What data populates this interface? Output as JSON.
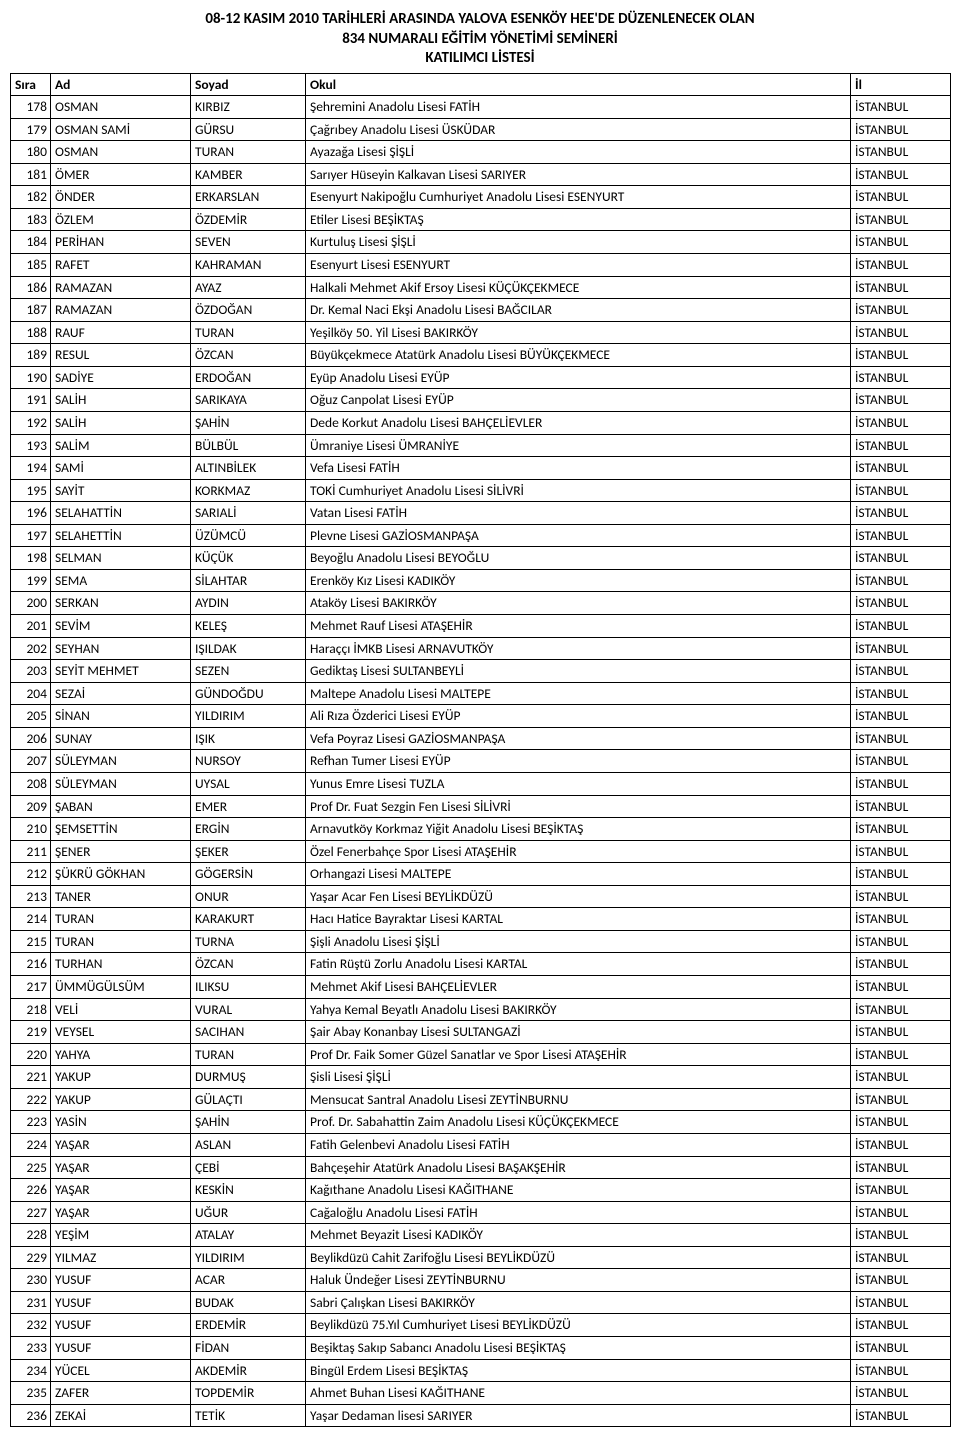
{
  "header": {
    "line1": "08-12 KASIM 2010 TARİHLERİ ARASINDA YALOVA ESENKÖY HEE'DE DÜZENLENECEK OLAN",
    "line2": "834 NUMARALI EĞİTİM YÖNETİMİ SEMİNERİ",
    "line3": "KATILIMCI LİSTESİ"
  },
  "table": {
    "columns": {
      "sira": "Sıra",
      "ad": "Ad",
      "soyad": "Soyad",
      "okul": "Okul",
      "il": "İl"
    },
    "rows": [
      {
        "sira": "178",
        "ad": "OSMAN",
        "soyad": "KIRBIZ",
        "okul": "Şehremini Anadolu Lisesi FATİH",
        "il": "İSTANBUL"
      },
      {
        "sira": "179",
        "ad": "OSMAN SAMİ",
        "soyad": "GÜRSU",
        "okul": "Çağrıbey Anadolu Lisesi ÜSKÜDAR",
        "il": "İSTANBUL"
      },
      {
        "sira": "180",
        "ad": "OSMAN",
        "soyad": "TURAN",
        "okul": "Ayazağa Lisesi ŞİŞLİ",
        "il": "İSTANBUL"
      },
      {
        "sira": "181",
        "ad": "ÖMER",
        "soyad": "KAMBER",
        "okul": "Sarıyer Hüseyin Kalkavan Lisesi SARIYER",
        "il": "İSTANBUL"
      },
      {
        "sira": "182",
        "ad": "ÖNDER",
        "soyad": "ERKARSLAN",
        "okul": "Esenyurt Nakipoğlu Cumhuriyet Anadolu Lisesi ESENYURT",
        "il": "İSTANBUL"
      },
      {
        "sira": "183",
        "ad": "ÖZLEM",
        "soyad": "ÖZDEMİR",
        "okul": "Etiler Lisesi BEŞİKTAŞ",
        "il": "İSTANBUL"
      },
      {
        "sira": "184",
        "ad": "PERİHAN",
        "soyad": "SEVEN",
        "okul": "Kurtuluş Lisesi ŞİŞLİ",
        "il": "İSTANBUL"
      },
      {
        "sira": "185",
        "ad": "RAFET",
        "soyad": "KAHRAMAN",
        "okul": "Esenyurt Lisesi ESENYURT",
        "il": "İSTANBUL"
      },
      {
        "sira": "186",
        "ad": "RAMAZAN",
        "soyad": "AYAZ",
        "okul": "Halkali Mehmet Akif Ersoy Lisesi KÜÇÜKÇEKMECE",
        "il": "İSTANBUL"
      },
      {
        "sira": "187",
        "ad": "RAMAZAN",
        "soyad": "ÖZDOĞAN",
        "okul": "Dr. Kemal Naci Ekşi Anadolu Lisesi BAĞCILAR",
        "il": "İSTANBUL"
      },
      {
        "sira": "188",
        "ad": "RAUF",
        "soyad": "TURAN",
        "okul": "Yeşilköy 50. Yil Lisesi BAKIRKÖY",
        "il": "İSTANBUL"
      },
      {
        "sira": "189",
        "ad": "RESUL",
        "soyad": "ÖZCAN",
        "okul": "Büyükçekmece Atatürk Anadolu Lisesi BÜYÜKÇEKMECE",
        "il": "İSTANBUL"
      },
      {
        "sira": "190",
        "ad": "SADİYE",
        "soyad": "ERDOĞAN",
        "okul": "Eyüp Anadolu Lisesi EYÜP",
        "il": "İSTANBUL"
      },
      {
        "sira": "191",
        "ad": "SALİH",
        "soyad": "SARIKAYA",
        "okul": "Oğuz Canpolat Lisesi EYÜP",
        "il": "İSTANBUL"
      },
      {
        "sira": "192",
        "ad": "SALİH",
        "soyad": "ŞAHİN",
        "okul": "Dede Korkut Anadolu Lisesi BAHÇELİEVLER",
        "il": "İSTANBUL"
      },
      {
        "sira": "193",
        "ad": "SALİM",
        "soyad": "BÜLBÜL",
        "okul": "Ümraniye Lisesi ÜMRANİYE",
        "il": "İSTANBUL"
      },
      {
        "sira": "194",
        "ad": "SAMİ",
        "soyad": "ALTINBİLEK",
        "okul": "Vefa Lisesi FATİH",
        "il": "İSTANBUL"
      },
      {
        "sira": "195",
        "ad": "SAYİT",
        "soyad": "KORKMAZ",
        "okul": "TOKİ Cumhuriyet Anadolu Lisesi SİLİVRİ",
        "il": "İSTANBUL"
      },
      {
        "sira": "196",
        "ad": "SELAHATTİN",
        "soyad": "SARIALİ",
        "okul": "Vatan Lisesi FATİH",
        "il": "İSTANBUL"
      },
      {
        "sira": "197",
        "ad": "SELAHETTİN",
        "soyad": "ÜZÜMCÜ",
        "okul": "Plevne Lisesi GAZİOSMANPAŞA",
        "il": "İSTANBUL"
      },
      {
        "sira": "198",
        "ad": "SELMAN",
        "soyad": "KÜÇÜK",
        "okul": "Beyoğlu Anadolu Lisesi BEYOĞLU",
        "il": "İSTANBUL"
      },
      {
        "sira": "199",
        "ad": "SEMA",
        "soyad": "SİLAHTAR",
        "okul": "Erenköy Kız Lisesi KADIKÖY",
        "il": "İSTANBUL"
      },
      {
        "sira": "200",
        "ad": "SERKAN",
        "soyad": "AYDIN",
        "okul": "Ataköy Lisesi BAKIRKÖY",
        "il": "İSTANBUL"
      },
      {
        "sira": "201",
        "ad": "SEVİM",
        "soyad": "KELEŞ",
        "okul": "Mehmet Rauf Lisesi ATAŞEHİR",
        "il": "İSTANBUL"
      },
      {
        "sira": "202",
        "ad": "SEYHAN",
        "soyad": "IŞILDAK",
        "okul": "Haraççı İMKB Lisesi ARNAVUTKÖY",
        "il": "İSTANBUL"
      },
      {
        "sira": "203",
        "ad": "SEYİT MEHMET",
        "soyad": "SEZEN",
        "okul": "Gediktaş Lisesi SULTANBEYLİ",
        "il": "İSTANBUL"
      },
      {
        "sira": "204",
        "ad": "SEZAİ",
        "soyad": "GÜNDOĞDU",
        "okul": "Maltepe Anadolu Lisesi MALTEPE",
        "il": "İSTANBUL"
      },
      {
        "sira": "205",
        "ad": "SİNAN",
        "soyad": "YILDIRIM",
        "okul": "Ali Rıza Özderici Lisesi EYÜP",
        "il": "İSTANBUL"
      },
      {
        "sira": "206",
        "ad": "SUNAY",
        "soyad": "IŞIK",
        "okul": "Vefa Poyraz Lisesi GAZİOSMANPAŞA",
        "il": "İSTANBUL"
      },
      {
        "sira": "207",
        "ad": "SÜLEYMAN",
        "soyad": "NURSOY",
        "okul": "Refhan Tumer Lisesi EYÜP",
        "il": "İSTANBUL"
      },
      {
        "sira": "208",
        "ad": "SÜLEYMAN",
        "soyad": "UYSAL",
        "okul": "Yunus Emre Lisesi TUZLA",
        "il": "İSTANBUL"
      },
      {
        "sira": "209",
        "ad": "ŞABAN",
        "soyad": "EMER",
        "okul": "Prof Dr. Fuat Sezgin Fen Lisesi SİLİVRİ",
        "il": "İSTANBUL"
      },
      {
        "sira": "210",
        "ad": "ŞEMSETTİN",
        "soyad": "ERGİN",
        "okul": "Arnavutköy Korkmaz Yiğit Anadolu Lisesi BEŞİKTAŞ",
        "il": "İSTANBUL"
      },
      {
        "sira": "211",
        "ad": "ŞENER",
        "soyad": "ŞEKER",
        "okul": "Özel Fenerbahçe Spor Lisesi ATAŞEHİR",
        "il": "İSTANBUL"
      },
      {
        "sira": "212",
        "ad": "ŞÜKRÜ GÖKHAN",
        "soyad": "GÖGERSİN",
        "okul": "Orhangazi Lisesi MALTEPE",
        "il": "İSTANBUL"
      },
      {
        "sira": "213",
        "ad": "TANER",
        "soyad": "ONUR",
        "okul": "Yaşar Acar Fen Lisesi BEYLİKDÜZÜ",
        "il": "İSTANBUL"
      },
      {
        "sira": "214",
        "ad": "TURAN",
        "soyad": "KARAKURT",
        "okul": "Hacı Hatice Bayraktar Lisesi KARTAL",
        "il": "İSTANBUL"
      },
      {
        "sira": "215",
        "ad": "TURAN",
        "soyad": "TURNA",
        "okul": "Şişli Anadolu Lisesi ŞİŞLİ",
        "il": "İSTANBUL"
      },
      {
        "sira": "216",
        "ad": "TURHAN",
        "soyad": "ÖZCAN",
        "okul": "Fatin Rüştü Zorlu Anadolu Lisesi KARTAL",
        "il": "İSTANBUL"
      },
      {
        "sira": "217",
        "ad": "ÜMMÜGÜLSÜM",
        "soyad": "ILIKSU",
        "okul": "Mehmet Akif Lisesi BAHÇELİEVLER",
        "il": "İSTANBUL"
      },
      {
        "sira": "218",
        "ad": "VELİ",
        "soyad": "VURAL",
        "okul": "Yahya Kemal Beyatlı Anadolu Lisesi BAKIRKÖY",
        "il": "İSTANBUL"
      },
      {
        "sira": "219",
        "ad": "VEYSEL",
        "soyad": "SACIHAN",
        "okul": "Şair Abay Konanbay Lisesi SULTANGAZİ",
        "il": "İSTANBUL"
      },
      {
        "sira": "220",
        "ad": "YAHYA",
        "soyad": "TURAN",
        "okul": "Prof Dr. Faik Somer Güzel Sanatlar ve Spor Lisesi ATAŞEHİR",
        "il": "İSTANBUL"
      },
      {
        "sira": "221",
        "ad": "YAKUP",
        "soyad": "DURMUŞ",
        "okul": "Şisli Lisesi ŞİŞLİ",
        "il": "İSTANBUL"
      },
      {
        "sira": "222",
        "ad": "YAKUP",
        "soyad": "GÜLAÇTI",
        "okul": "Mensucat Santral Anadolu Lisesi ZEYTİNBURNU",
        "il": "İSTANBUL"
      },
      {
        "sira": "223",
        "ad": "YASİN",
        "soyad": "ŞAHİN",
        "okul": "Prof. Dr. Sabahattin Zaim Anadolu Lisesi KÜÇÜKÇEKMECE",
        "il": "İSTANBUL"
      },
      {
        "sira": "224",
        "ad": "YAŞAR",
        "soyad": "ASLAN",
        "okul": "Fatih Gelenbevi Anadolu Lisesi FATİH",
        "il": "İSTANBUL"
      },
      {
        "sira": "225",
        "ad": "YAŞAR",
        "soyad": "ÇEBİ",
        "okul": "Bahçeşehir Atatürk Anadolu Lisesi BAŞAKŞEHİR",
        "il": "İSTANBUL"
      },
      {
        "sira": "226",
        "ad": "YAŞAR",
        "soyad": "KESKİN",
        "okul": "Kağıthane Anadolu Lisesi KAĞITHANE",
        "il": "İSTANBUL"
      },
      {
        "sira": "227",
        "ad": "YAŞAR",
        "soyad": "UĞUR",
        "okul": "Cağaloğlu Anadolu Lisesi FATİH",
        "il": "İSTANBUL"
      },
      {
        "sira": "228",
        "ad": "YEŞİM",
        "soyad": "ATALAY",
        "okul": "Mehmet Beyazit Lisesi KADIKÖY",
        "il": "İSTANBUL"
      },
      {
        "sira": "229",
        "ad": "YILMAZ",
        "soyad": "YILDIRIM",
        "okul": "Beylikdüzü Cahit Zarifoğlu Lisesi BEYLİKDÜZÜ",
        "il": "İSTANBUL"
      },
      {
        "sira": "230",
        "ad": "YUSUF",
        "soyad": "ACAR",
        "okul": "Haluk Ündeğer Lisesi ZEYTİNBURNU",
        "il": "İSTANBUL"
      },
      {
        "sira": "231",
        "ad": "YUSUF",
        "soyad": "BUDAK",
        "okul": "Sabri Çalışkan Lisesi BAKIRKÖY",
        "il": "İSTANBUL"
      },
      {
        "sira": "232",
        "ad": "YUSUF",
        "soyad": "ERDEMİR",
        "okul": "Beylikdüzü 75.Yıl Cumhuriyet Lisesi BEYLİKDÜZÜ",
        "il": "İSTANBUL"
      },
      {
        "sira": "233",
        "ad": "YUSUF",
        "soyad": "FİDAN",
        "okul": "Beşiktaş Sakıp Sabancı Anadolu Lisesi BEŞİKTAŞ",
        "il": "İSTANBUL"
      },
      {
        "sira": "234",
        "ad": "YÜCEL",
        "soyad": "AKDEMİR",
        "okul": "Bingül Erdem Lisesi BEŞİKTAŞ",
        "il": "İSTANBUL"
      },
      {
        "sira": "235",
        "ad": "ZAFER",
        "soyad": "TOPDEMİR",
        "okul": "Ahmet Buhan Lisesi KAĞITHANE",
        "il": "İSTANBUL"
      },
      {
        "sira": "236",
        "ad": "ZEKAİ",
        "soyad": "TETİK",
        "okul": "Yaşar Dedaman lisesi SARIYER",
        "il": "İSTANBUL"
      }
    ]
  }
}
